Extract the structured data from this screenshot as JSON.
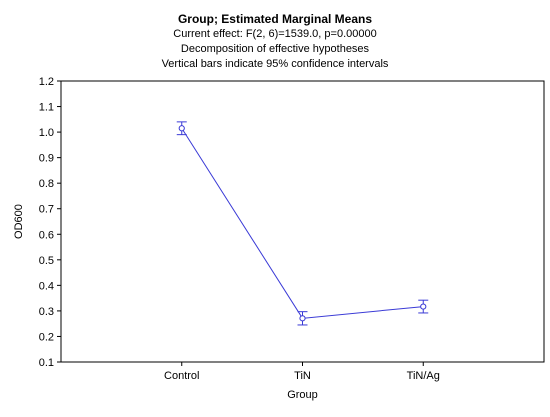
{
  "chart_data": {
    "type": "line",
    "title": "Group; Estimated Marginal Means",
    "subtitle_lines": [
      "Current effect: F(2, 6)=1539.0, p=0.00000",
      "Decomposition of effective hypotheses",
      "Vertical bars indicate 95% confidence intervals"
    ],
    "xlabel": "Group",
    "ylabel": "OD600",
    "categories": [
      "Control",
      "TiN",
      "TiN/Ag"
    ],
    "ylim": [
      0.1,
      1.2
    ],
    "yticks": [
      "0.1",
      "0.2",
      "0.3",
      "0.4",
      "0.5",
      "0.6",
      "0.7",
      "0.8",
      "0.9",
      "1.0",
      "1.1",
      "1.2"
    ],
    "series": [
      {
        "values": [
          1.015,
          0.271,
          0.317
        ],
        "ci_lower": [
          0.99,
          0.245,
          0.292
        ],
        "ci_upper": [
          1.04,
          0.297,
          0.342
        ],
        "color": "#3a3ad6"
      }
    ],
    "grid": false,
    "legend": "none"
  }
}
